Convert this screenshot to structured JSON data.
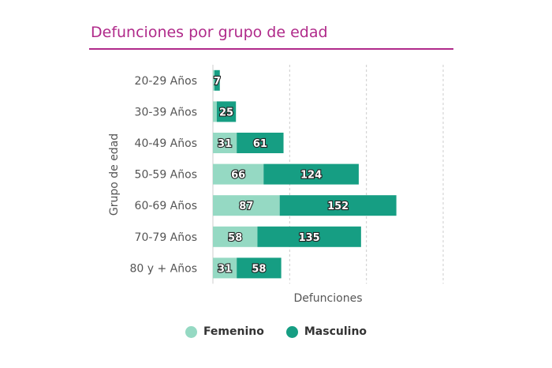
{
  "title": "Defunciones por grupo de edad",
  "colors": {
    "femenino": "#95d9c3",
    "masculino": "#169e83"
  },
  "legend": [
    {
      "label": "Femenino",
      "color": "#95d9c3"
    },
    {
      "label": "Masculino",
      "color": "#169e83"
    }
  ],
  "chart_data": {
    "type": "bar",
    "orientation": "horizontal",
    "stacked": true,
    "title": "Defunciones por grupo de edad",
    "xlabel": "Defunciones",
    "ylabel": "Grupo de edad",
    "categories": [
      "20-29 Años",
      "30-39 Años",
      "40-49 Años",
      "50-59 Años",
      "60-69 Años",
      "70-79 Años",
      "80 y + Años"
    ],
    "series": [
      {
        "name": "Femenino",
        "values": [
          2,
          5,
          31,
          66,
          87,
          58,
          31
        ],
        "labels": [
          "",
          "",
          "31",
          "66",
          "87",
          "58",
          "31"
        ]
      },
      {
        "name": "Masculino",
        "values": [
          7,
          25,
          61,
          124,
          152,
          135,
          58
        ],
        "labels": [
          "7",
          "25",
          "61",
          "124",
          "152",
          "135",
          "58"
        ]
      }
    ],
    "xlim": [
      0,
      300
    ],
    "grid": true,
    "legend_position": "bottom"
  }
}
